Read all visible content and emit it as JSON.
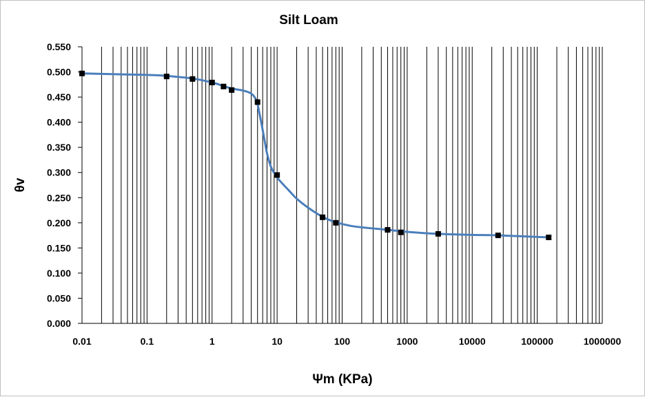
{
  "chart_data": {
    "type": "scatter",
    "title": "Silt Loam",
    "xlabel": "Ψm (KPa)",
    "ylabel": "θv",
    "x_scale": "log",
    "xlim": [
      0.01,
      1000000
    ],
    "ylim": [
      0,
      0.55
    ],
    "x_ticks": [
      "0.01",
      "0.1",
      "1",
      "10",
      "100",
      "1000",
      "10000",
      "100000",
      "1000000"
    ],
    "y_ticks": [
      "0.000",
      "0.050",
      "0.100",
      "0.150",
      "0.200",
      "0.250",
      "0.300",
      "0.350",
      "0.400",
      "0.450",
      "0.500",
      "0.550"
    ],
    "grid": {
      "x_major": true,
      "x_minor": true,
      "y_major": false
    },
    "legend": "none",
    "colors": {
      "markers": "#000000",
      "curve": "#4a7ebb"
    },
    "series": [
      {
        "marker": "square",
        "x": [
          0.01,
          0.2,
          0.5,
          1,
          1.5,
          2,
          5,
          10,
          50,
          80,
          500,
          800,
          3000,
          25000,
          150000
        ],
        "y": [
          0.497,
          0.491,
          0.486,
          0.479,
          0.471,
          0.464,
          0.44,
          0.295,
          0.211,
          0.2,
          0.186,
          0.181,
          0.178,
          0.175,
          0.171
        ]
      },
      {
        "style": "smooth-line",
        "x": [
          0.01,
          0.1,
          0.2,
          0.5,
          1,
          1.5,
          2,
          3,
          4,
          4.6,
          5,
          5.4,
          5.8,
          6.5,
          7,
          8,
          10,
          15,
          20,
          30,
          50,
          80,
          150,
          500,
          1000,
          3000,
          10000,
          25000,
          150000
        ],
        "y": [
          0.497,
          0.494,
          0.492,
          0.487,
          0.479,
          0.472,
          0.467,
          0.463,
          0.457,
          0.448,
          0.436,
          0.415,
          0.395,
          0.36,
          0.338,
          0.312,
          0.29,
          0.265,
          0.248,
          0.23,
          0.212,
          0.201,
          0.193,
          0.186,
          0.182,
          0.178,
          0.176,
          0.175,
          0.171
        ]
      }
    ]
  }
}
